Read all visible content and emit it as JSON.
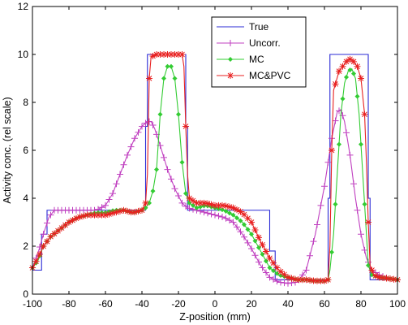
{
  "chart_data": {
    "type": "line",
    "title": "",
    "xlabel": "Z-position (mm)",
    "ylabel": "Activity conc. (rel scale)",
    "xlim": [
      -100,
      100
    ],
    "ylim": [
      0,
      12
    ],
    "x_ticks": [
      -100,
      -80,
      -60,
      -40,
      -20,
      0,
      20,
      40,
      60,
      80,
      100
    ],
    "x_tick_labels": [
      "-100",
      "-80",
      "-60",
      "-40",
      "-20",
      "0",
      "20",
      "40",
      "60",
      "80",
      "100"
    ],
    "y_ticks": [
      0,
      2,
      4,
      6,
      8,
      10,
      12
    ],
    "y_tick_labels": [
      "0",
      "2",
      "4",
      "6",
      "8",
      "10",
      "12"
    ],
    "grid": false,
    "legend_position": "top-right",
    "series": [
      {
        "name": "True",
        "color": "#2b2bd6",
        "marker": "none",
        "points": [
          [
            -100,
            1
          ],
          [
            -95,
            1
          ],
          [
            -95,
            2.5
          ],
          [
            -92,
            2.5
          ],
          [
            -92,
            3.5
          ],
          [
            -38,
            3.5
          ],
          [
            -38,
            7
          ],
          [
            -37,
            7
          ],
          [
            -37,
            10
          ],
          [
            -16,
            10
          ],
          [
            -16,
            7
          ],
          [
            -15,
            7
          ],
          [
            -15,
            3.5
          ],
          [
            30,
            3.5
          ],
          [
            30,
            1.8
          ],
          [
            33,
            1.8
          ],
          [
            33,
            0.6
          ],
          [
            62,
            0.6
          ],
          [
            62,
            4
          ],
          [
            63,
            4
          ],
          [
            63,
            10
          ],
          [
            84,
            10
          ],
          [
            84,
            4
          ],
          [
            85,
            4
          ],
          [
            85,
            0.6
          ],
          [
            100,
            0.6
          ]
        ]
      },
      {
        "name": "Uncorr.",
        "color": "#c040c0",
        "marker": "plus",
        "points": [
          [
            -100,
            1.1
          ],
          [
            -97,
            1.7
          ],
          [
            -94,
            2.5
          ],
          [
            -91,
            3.2
          ],
          [
            -88,
            3.5
          ],
          [
            -80,
            3.5
          ],
          [
            -70,
            3.5
          ],
          [
            -65,
            3.5
          ],
          [
            -60,
            3.7
          ],
          [
            -56,
            4.2
          ],
          [
            -52,
            5
          ],
          [
            -48,
            5.8
          ],
          [
            -44,
            6.5
          ],
          [
            -40,
            7
          ],
          [
            -37,
            7.2
          ],
          [
            -35,
            7.2
          ],
          [
            -33,
            6.9
          ],
          [
            -30,
            6.2
          ],
          [
            -26,
            5.2
          ],
          [
            -22,
            4.4
          ],
          [
            -18,
            3.8
          ],
          [
            -15,
            3.6
          ],
          [
            -10,
            3.5
          ],
          [
            -5,
            3.4
          ],
          [
            0,
            3.3
          ],
          [
            5,
            3.2
          ],
          [
            10,
            3
          ],
          [
            15,
            2.5
          ],
          [
            20,
            1.9
          ],
          [
            25,
            1.2
          ],
          [
            30,
            0.7
          ],
          [
            35,
            0.5
          ],
          [
            40,
            0.45
          ],
          [
            45,
            0.5
          ],
          [
            50,
            1
          ],
          [
            55,
            2.5
          ],
          [
            60,
            4.5
          ],
          [
            64,
            6.5
          ],
          [
            67,
            7.6
          ],
          [
            69,
            7.7
          ],
          [
            71,
            7.2
          ],
          [
            74,
            5.8
          ],
          [
            77,
            4
          ],
          [
            80,
            2.5
          ],
          [
            83,
            1.5
          ],
          [
            86,
            1
          ],
          [
            90,
            0.8
          ],
          [
            95,
            0.65
          ],
          [
            100,
            0.6
          ]
        ]
      },
      {
        "name": "MC",
        "color": "#33cc33",
        "marker": "dot",
        "points": [
          [
            -100,
            1.1
          ],
          [
            -97,
            1.4
          ],
          [
            -94,
            2
          ],
          [
            -90,
            2.4
          ],
          [
            -85,
            2.7
          ],
          [
            -80,
            3.0
          ],
          [
            -75,
            3.2
          ],
          [
            -70,
            3.3
          ],
          [
            -65,
            3.4
          ],
          [
            -60,
            3.4
          ],
          [
            -55,
            3.5
          ],
          [
            -50,
            3.5
          ],
          [
            -45,
            3.4
          ],
          [
            -40,
            3.5
          ],
          [
            -38,
            3.6
          ],
          [
            -36,
            3.8
          ],
          [
            -34,
            4.3
          ],
          [
            -32,
            5.2
          ],
          [
            -30,
            7.5
          ],
          [
            -28,
            9
          ],
          [
            -26,
            9.5
          ],
          [
            -24,
            9.5
          ],
          [
            -22,
            9.0
          ],
          [
            -20,
            7.5
          ],
          [
            -18,
            5.5
          ],
          [
            -16,
            4.2
          ],
          [
            -14,
            3.8
          ],
          [
            -10,
            3.6
          ],
          [
            -5,
            3.7
          ],
          [
            0,
            3.6
          ],
          [
            5,
            3.5
          ],
          [
            10,
            3.3
          ],
          [
            15,
            3
          ],
          [
            20,
            2.5
          ],
          [
            25,
            1.8
          ],
          [
            30,
            1.1
          ],
          [
            35,
            0.8
          ],
          [
            40,
            0.7
          ],
          [
            45,
            0.6
          ],
          [
            50,
            0.6
          ],
          [
            55,
            0.55
          ],
          [
            60,
            0.55
          ],
          [
            62,
            0.6
          ],
          [
            63,
            1
          ],
          [
            65,
            2.5
          ],
          [
            67,
            5
          ],
          [
            69,
            7.5
          ],
          [
            71,
            8.8
          ],
          [
            73,
            9.3
          ],
          [
            75,
            9.4
          ],
          [
            77,
            9
          ],
          [
            79,
            7.5
          ],
          [
            81,
            5
          ],
          [
            83,
            2.5
          ],
          [
            84,
            1.2
          ],
          [
            86,
            0.8
          ],
          [
            90,
            0.7
          ],
          [
            95,
            0.65
          ],
          [
            100,
            0.6
          ]
        ]
      },
      {
        "name": "MC&PVC",
        "color": "#e82020",
        "marker": "star",
        "points": [
          [
            -100,
            1.1
          ],
          [
            -97,
            1.5
          ],
          [
            -94,
            2
          ],
          [
            -90,
            2.4
          ],
          [
            -85,
            2.7
          ],
          [
            -80,
            3.0
          ],
          [
            -75,
            3.2
          ],
          [
            -70,
            3.3
          ],
          [
            -65,
            3.3
          ],
          [
            -60,
            3.3
          ],
          [
            -55,
            3.4
          ],
          [
            -50,
            3.5
          ],
          [
            -45,
            3.4
          ],
          [
            -40,
            3.5
          ],
          [
            -38,
            3.8
          ],
          [
            -37,
            5
          ],
          [
            -36,
            9
          ],
          [
            -35,
            9.9
          ],
          [
            -32,
            10
          ],
          [
            -28,
            10
          ],
          [
            -24,
            10
          ],
          [
            -20,
            10
          ],
          [
            -18,
            10
          ],
          [
            -17,
            9.5
          ],
          [
            -16,
            7
          ],
          [
            -15,
            5
          ],
          [
            -14,
            4
          ],
          [
            -10,
            3.8
          ],
          [
            -5,
            3.8
          ],
          [
            0,
            3.7
          ],
          [
            5,
            3.7
          ],
          [
            10,
            3.6
          ],
          [
            15,
            3.4
          ],
          [
            20,
            3
          ],
          [
            25,
            2.2
          ],
          [
            30,
            1.5
          ],
          [
            35,
            1.0
          ],
          [
            40,
            0.7
          ],
          [
            45,
            0.6
          ],
          [
            50,
            0.6
          ],
          [
            55,
            0.55
          ],
          [
            60,
            0.55
          ],
          [
            62,
            0.6
          ],
          [
            63,
            2
          ],
          [
            64,
            6
          ],
          [
            65,
            8.5
          ],
          [
            68,
            9.3
          ],
          [
            71,
            9.6
          ],
          [
            73,
            9.8
          ],
          [
            75,
            9.8
          ],
          [
            78,
            9.5
          ],
          [
            80,
            9
          ],
          [
            82,
            7.5
          ],
          [
            83,
            5.5
          ],
          [
            84,
            3
          ],
          [
            85,
            1.2
          ],
          [
            87,
            0.8
          ],
          [
            90,
            0.7
          ],
          [
            95,
            0.65
          ],
          [
            100,
            0.6
          ]
        ]
      }
    ]
  }
}
